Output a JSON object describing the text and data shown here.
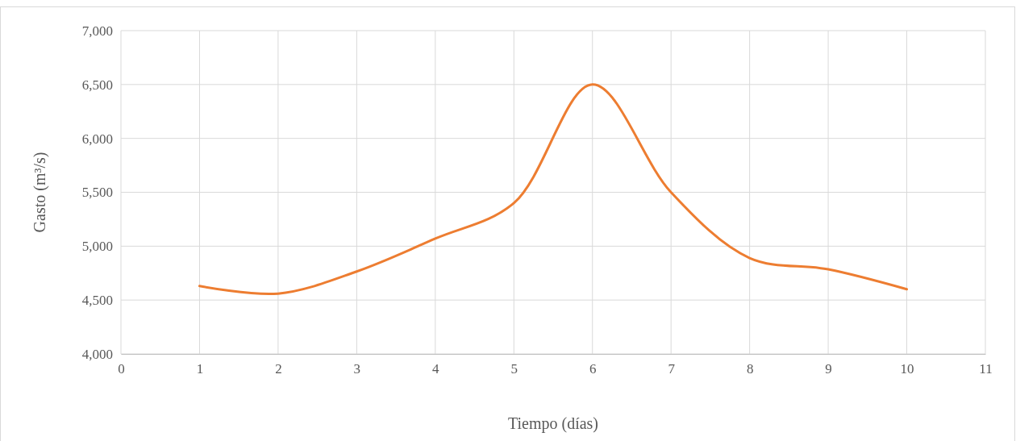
{
  "chart_data": {
    "type": "line",
    "xlabel": "Tiempo (días)",
    "ylabel": "Gasto (m³/s)",
    "x": [
      1,
      2,
      3,
      4,
      5,
      6,
      7,
      8,
      9,
      10
    ],
    "series": [
      {
        "color": "#ed7d31",
        "values": [
          4630,
          4560,
          4765,
          5070,
          5400,
          6500,
          5500,
          4890,
          4785,
          4600
        ]
      }
    ],
    "xlim": [
      0,
      11
    ],
    "xticks": [
      0,
      1,
      2,
      3,
      4,
      5,
      6,
      7,
      8,
      9,
      10,
      11
    ],
    "ylim": [
      4000,
      7000
    ],
    "yticks": [
      {
        "value": 4000,
        "label": "4,000"
      },
      {
        "value": 4500,
        "label": "4,500"
      },
      {
        "value": 5000,
        "label": "5,000"
      },
      {
        "value": 5500,
        "label": "5,500"
      },
      {
        "value": 6000,
        "label": "6,000"
      },
      {
        "value": 6500,
        "label": "6,500"
      },
      {
        "value": 7000,
        "label": "7,000"
      }
    ],
    "grid": true,
    "marker": "none",
    "line_style": "solid"
  }
}
